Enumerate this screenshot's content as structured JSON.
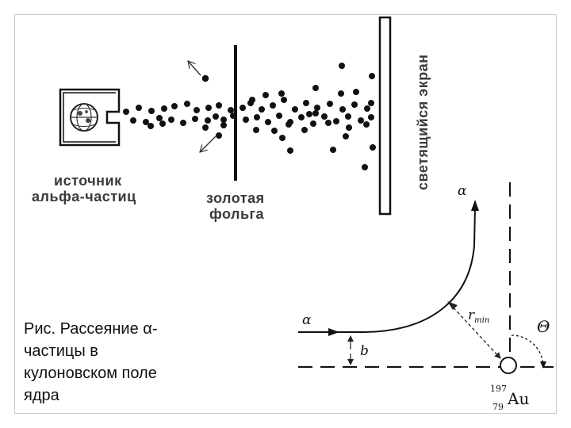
{
  "experiment": {
    "source_label_line1": "источник",
    "source_label_line2": "альфа-частиц",
    "foil_label_line1": "золотая",
    "foil_label_line2": "фольга",
    "screen_label": "светящийся экран"
  },
  "scattering": {
    "alpha_top": "α",
    "alpha_left": "α",
    "impact_parameter": "b",
    "r_min_r": "r",
    "r_min_sub": "min",
    "theta": "Θ",
    "mass_number": "197",
    "atomic_number": "79",
    "element": "Au"
  },
  "caption": {
    "text": "Рис. Рассеяние α-частицы в кулоновском поле ядра"
  },
  "colors": {
    "particle": "#111111",
    "label_gray": "#3a3a3a"
  }
}
